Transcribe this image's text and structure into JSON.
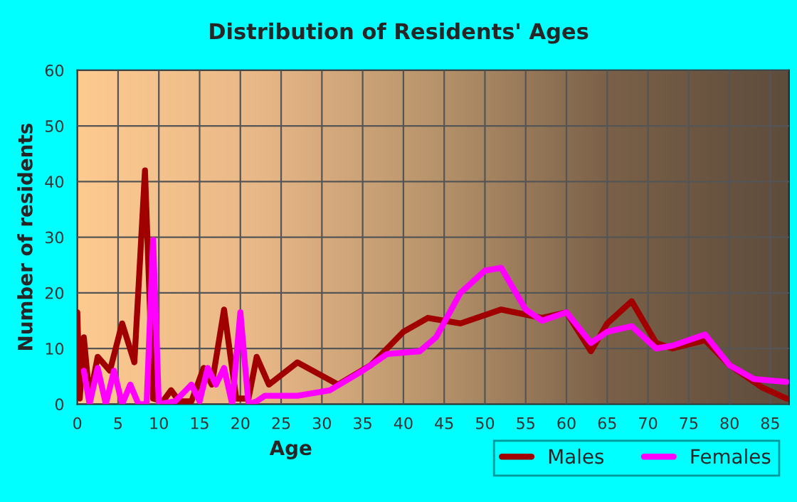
{
  "chart_data": {
    "type": "line",
    "title": "Distribution of Residents' Ages",
    "xlabel": "Age",
    "ylabel": "Number of residents",
    "xlim": [
      0,
      87.3
    ],
    "ylim": [
      0,
      60
    ],
    "xticks": [
      0,
      5,
      10,
      15,
      20,
      25,
      30,
      35,
      40,
      45,
      50,
      55,
      60,
      65,
      70,
      75,
      80,
      85
    ],
    "yticks": [
      0,
      10,
      20,
      30,
      40,
      50,
      60
    ],
    "grid": true,
    "legend": "bottom",
    "line_style": "solid",
    "marker": "none",
    "series": [
      {
        "name": "Males",
        "color": "#a00000",
        "x": [
          0,
          0.3,
          0.8,
          1.5,
          2.5,
          4,
          5.5,
          7,
          8.3,
          9.3,
          10.5,
          11.5,
          12.5,
          14,
          15.5,
          16.5,
          18,
          19.5,
          21,
          22,
          23.5,
          27,
          32,
          36,
          40,
          43,
          47,
          52,
          57,
          60,
          63,
          65,
          68,
          71,
          73,
          77,
          80,
          84,
          87
        ],
        "values": [
          16.5,
          1,
          12,
          1,
          8.5,
          6,
          14.5,
          7.5,
          42,
          1,
          0.5,
          2.5,
          0.5,
          0.5,
          6.5,
          3.5,
          17,
          1,
          1,
          8.5,
          3.5,
          7.5,
          3.5,
          7,
          13,
          15.5,
          14.5,
          17,
          15.5,
          16.5,
          9.5,
          14.5,
          18.5,
          11,
          10,
          11.5,
          7,
          3,
          1
        ]
      },
      {
        "name": "Females",
        "color": "#ff00ff",
        "x": [
          0.8,
          1.5,
          2.5,
          3.5,
          4.5,
          5.5,
          6.5,
          7.5,
          8.5,
          9.3,
          10,
          12,
          14,
          15,
          16,
          17,
          18,
          19,
          20,
          21,
          22,
          23,
          27,
          31,
          35,
          38,
          42,
          44,
          47,
          50,
          52,
          55,
          57,
          60,
          63,
          65,
          68,
          71,
          73,
          77,
          80,
          83,
          87
        ],
        "values": [
          6,
          0,
          6.5,
          0,
          6,
          0,
          3.5,
          0,
          0,
          29.5,
          0,
          0.5,
          3.5,
          0.5,
          6.5,
          3.5,
          6.5,
          0,
          16.5,
          0,
          0.5,
          1.5,
          1.5,
          2.5,
          6,
          9,
          9.5,
          12,
          20,
          24,
          24.5,
          17,
          15,
          16.5,
          11,
          13,
          14,
          10,
          10.5,
          12.5,
          7,
          4.5,
          4
        ]
      }
    ]
  }
}
